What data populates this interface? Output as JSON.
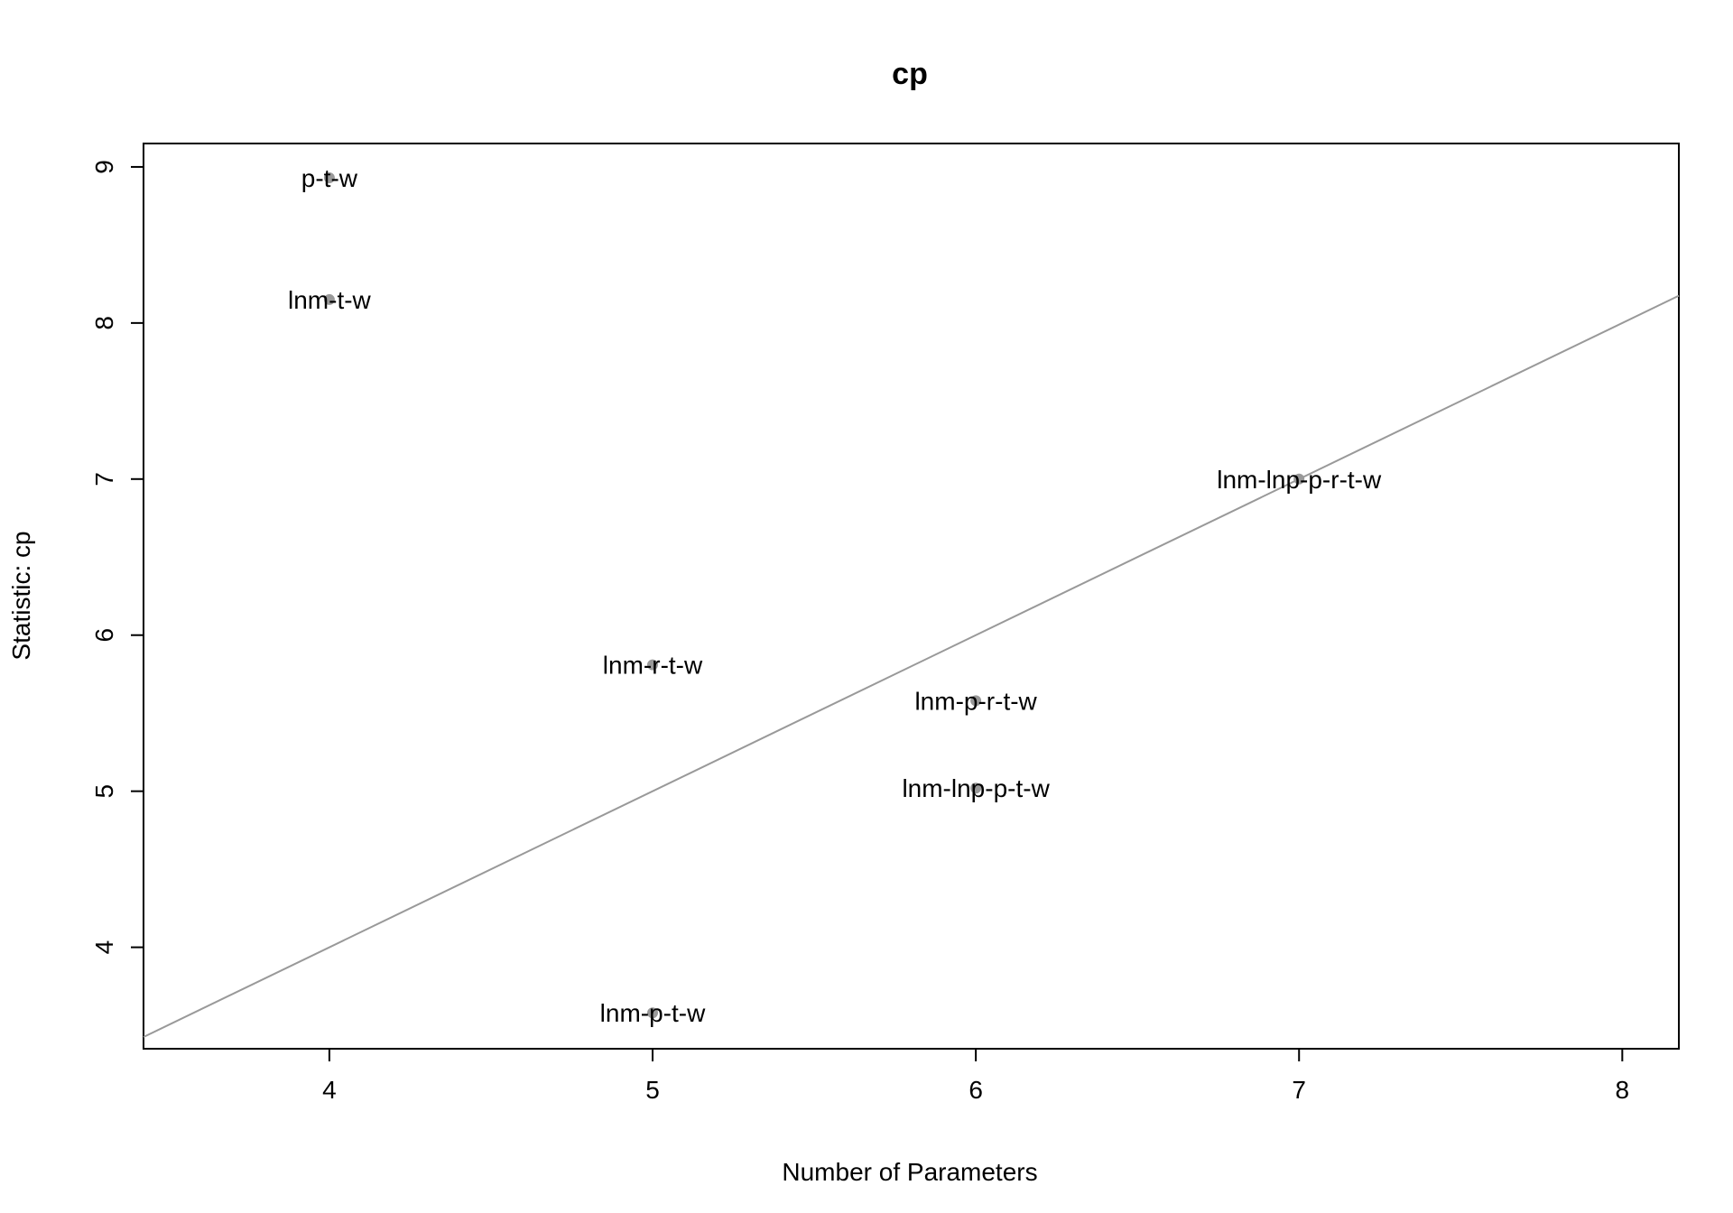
{
  "chart_data": {
    "type": "scatter",
    "title": "cp",
    "xlabel": "Number of Parameters",
    "ylabel": "Statistic: cp",
    "xlim": [
      3.425,
      8.175
    ],
    "ylim": [
      3.35,
      9.15
    ],
    "x_ticks": [
      4,
      5,
      6,
      7,
      8
    ],
    "y_ticks": [
      4,
      5,
      6,
      7,
      8,
      9
    ],
    "grid": false,
    "legend": "none",
    "point_color": "#999999",
    "reference_line": {
      "slope": 1,
      "intercept": 0,
      "color": "#999999"
    },
    "points": [
      {
        "label": "p-t-w",
        "x": 4,
        "y": 8.93
      },
      {
        "label": "lnm-t-w",
        "x": 4,
        "y": 8.15
      },
      {
        "label": "lnm-lnp-p-r-t-w",
        "x": 7,
        "y": 7.0
      },
      {
        "label": "lnm-r-t-w",
        "x": 5,
        "y": 5.81
      },
      {
        "label": "lnm-p-r-t-w",
        "x": 6,
        "y": 5.58
      },
      {
        "label": "lnm-lnp-p-t-w",
        "x": 6,
        "y": 5.02
      },
      {
        "label": "lnm-p-t-w",
        "x": 5,
        "y": 3.58
      }
    ]
  }
}
